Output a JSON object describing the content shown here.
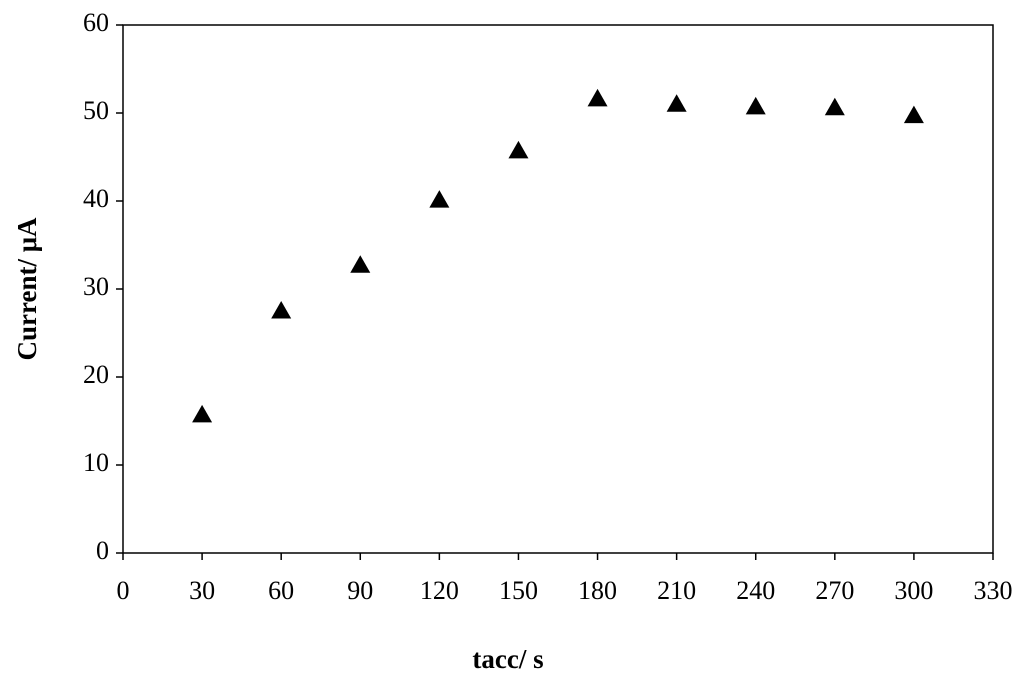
{
  "chart_data": {
    "type": "scatter",
    "x_label": "tacc/ s",
    "y_label": "Current/ μA",
    "x": [
      30,
      60,
      90,
      120,
      150,
      180,
      210,
      240,
      270,
      300
    ],
    "series": [
      {
        "color": "#000000",
        "marker": "triangle",
        "values": [
          15.7,
          27.5,
          32.7,
          40.1,
          45.7,
          51.6,
          51.0,
          50.7,
          50.6,
          49.7
        ]
      }
    ],
    "xlim": [
      0,
      330
    ],
    "xticks": [
      0,
      30,
      60,
      90,
      120,
      150,
      180,
      210,
      240,
      270,
      300,
      330
    ],
    "ylim": [
      0,
      60
    ],
    "yticks": [
      0,
      10,
      20,
      30,
      40,
      50,
      60
    ],
    "grid": false
  }
}
